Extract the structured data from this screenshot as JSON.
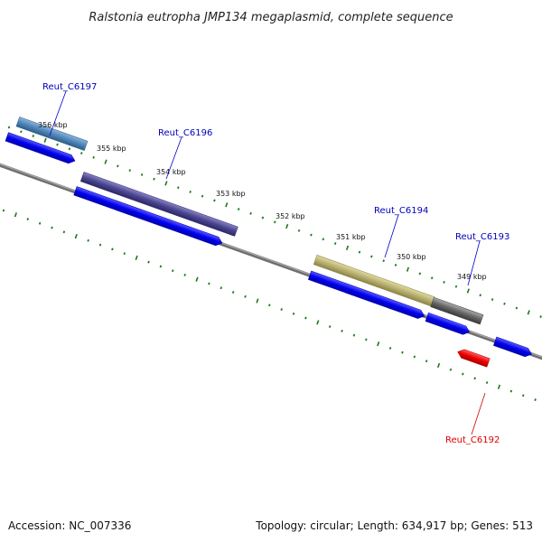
{
  "title": "Ralstonia eutropha JMP134 megaplasmid, complete sequence",
  "footer": {
    "accession": "Accession: NC_007336",
    "summary": "Topology: circular; Length: 634,917 bp; Genes: 513"
  },
  "kbp_labels": [
    "356 kbp",
    "355 kbp",
    "354 kbp",
    "353 kbp",
    "352 kbp",
    "351 kbp",
    "350 kbp",
    "349 kbp"
  ],
  "genes": [
    {
      "id": "Reut_C6197",
      "label": "Reut_C6197",
      "color": "#0000bb"
    },
    {
      "id": "Reut_C6196",
      "label": "Reut_C6196",
      "color": "#0000bb"
    },
    {
      "id": "Reut_C6194",
      "label": "Reut_C6194",
      "color": "#0000bb"
    },
    {
      "id": "Reut_C6193",
      "label": "Reut_C6193",
      "color": "#0000bb"
    },
    {
      "id": "Reut_C6192",
      "label": "Reut_C6192",
      "color": "#dd0000"
    }
  ],
  "colors": {
    "backbone": "#808080",
    "tick": "#1a7a1a",
    "forward_cds": "#0000ee",
    "reverse_cds": "#ee0000",
    "label_line": "#0000cc",
    "label_line_reverse": "#cc0000",
    "feature_6197": "#4f86b8",
    "feature_6196": "#4a4590",
    "feature_6194": "#b8b070",
    "feature_6193": "#666666"
  }
}
